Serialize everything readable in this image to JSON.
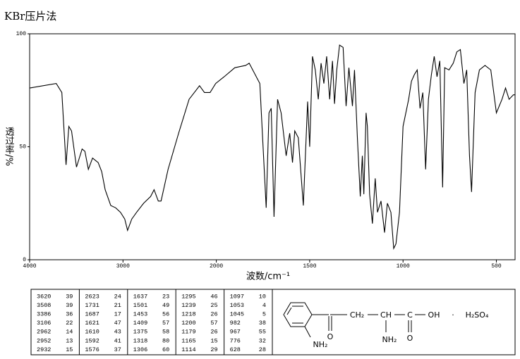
{
  "chart_data": {
    "type": "line",
    "title": "KBr压片法",
    "x_label": "波数/cm⁻¹",
    "y_label": "透过率/%",
    "color": "#000000",
    "x": [
      4000,
      3715,
      3655,
      3610,
      3580,
      3551,
      3498,
      3438,
      3408,
      3371,
      3326,
      3266,
      3228,
      3191,
      3131,
      3079,
      3027,
      2981,
      2951,
      2906,
      2854,
      2779,
      2704,
      2667,
      2622,
      2592,
      2517,
      2404,
      2292,
      2180,
      2127,
      2067,
      2007,
      1958,
      1901,
      1843,
      1824,
      1767,
      1733,
      1718,
      1706,
      1691,
      1672,
      1653,
      1626,
      1607,
      1592,
      1580,
      1561,
      1534,
      1511,
      1500,
      1485,
      1470,
      1454,
      1439,
      1424,
      1409,
      1393,
      1378,
      1367,
      1355,
      1340,
      1321,
      1305,
      1290,
      1271,
      1260,
      1244,
      1229,
      1218,
      1210,
      1198,
      1191,
      1179,
      1164,
      1149,
      1137,
      1118,
      1099,
      1084,
      1065,
      1050,
      1038,
      1019,
      1000,
      970,
      955,
      939,
      924,
      909,
      894,
      879,
      864,
      848,
      833,
      818,
      803,
      788,
      777,
      754,
      731,
      712,
      693,
      674,
      659,
      644,
      633,
      614,
      591,
      561,
      530,
      500,
      470,
      451,
      432,
      409,
      400
    ],
    "values": [
      76,
      78,
      74,
      42,
      59,
      57,
      41,
      49,
      48,
      40,
      45,
      43,
      39,
      31,
      24,
      23,
      21,
      18,
      13,
      18,
      21,
      25,
      28,
      31,
      26,
      26,
      40,
      56,
      71,
      77,
      74,
      74,
      78,
      81,
      85,
      86,
      87,
      78,
      23,
      65,
      67,
      19,
      71,
      65,
      46,
      56,
      43,
      57,
      54,
      24,
      70,
      50,
      90,
      84,
      71,
      87,
      78,
      90,
      71,
      88,
      69,
      84,
      95,
      94,
      68,
      85,
      68,
      84,
      53,
      28,
      46,
      29,
      65,
      59,
      29,
      16,
      36,
      21,
      26,
      12,
      25,
      21,
      5,
      7,
      21,
      59,
      71,
      79,
      82,
      84,
      67,
      74,
      40,
      71,
      82,
      90,
      81,
      88,
      32,
      85,
      84,
      87,
      92,
      93,
      78,
      84,
      46,
      30,
      74,
      84,
      86,
      84,
      65,
      71,
      76,
      71,
      73,
      73
    ],
    "xlim": [
      4000,
      400
    ],
    "xticks": [
      4000,
      3000,
      2000,
      1500,
      1000,
      500
    ],
    "x_scale_break": 2000,
    "ylim": [
      0,
      100
    ],
    "yticks": [
      0,
      50,
      100
    ]
  },
  "peak_table": {
    "columns": [
      [
        [
          3620,
          39
        ],
        [
          3508,
          39
        ],
        [
          3386,
          36
        ],
        [
          3106,
          22
        ],
        [
          2962,
          14
        ],
        [
          2952,
          13
        ],
        [
          2932,
          15
        ]
      ],
      [
        [
          2623,
          24
        ],
        [
          1731,
          21
        ],
        [
          1687,
          17
        ],
        [
          1621,
          47
        ],
        [
          1610,
          43
        ],
        [
          1592,
          41
        ],
        [
          1576,
          37
        ]
      ],
      [
        [
          1637,
          23
        ],
        [
          1501,
          49
        ],
        [
          1453,
          56
        ],
        [
          1409,
          57
        ],
        [
          1375,
          58
        ],
        [
          1318,
          80
        ],
        [
          1306,
          60
        ]
      ],
      [
        [
          1295,
          46
        ],
        [
          1239,
          25
        ],
        [
          1218,
          26
        ],
        [
          1200,
          57
        ],
        [
          1179,
          26
        ],
        [
          1165,
          15
        ],
        [
          1114,
          29
        ]
      ],
      [
        [
          1097,
          10
        ],
        [
          1053,
          4
        ],
        [
          1045,
          5
        ],
        [
          982,
          38
        ],
        [
          967,
          55
        ],
        [
          776,
          32
        ],
        [
          628,
          28
        ]
      ]
    ]
  },
  "structure": {
    "amine_ring": "NH₂",
    "oxo_1": "O",
    "methylene": "CH₂",
    "methine": "CH",
    "amine_chain": "NH₂",
    "carboxyl_c": "C",
    "oxo_2": "O",
    "hydroxyl": "OH",
    "dot": "·",
    "salt": "H₂SO₄"
  }
}
